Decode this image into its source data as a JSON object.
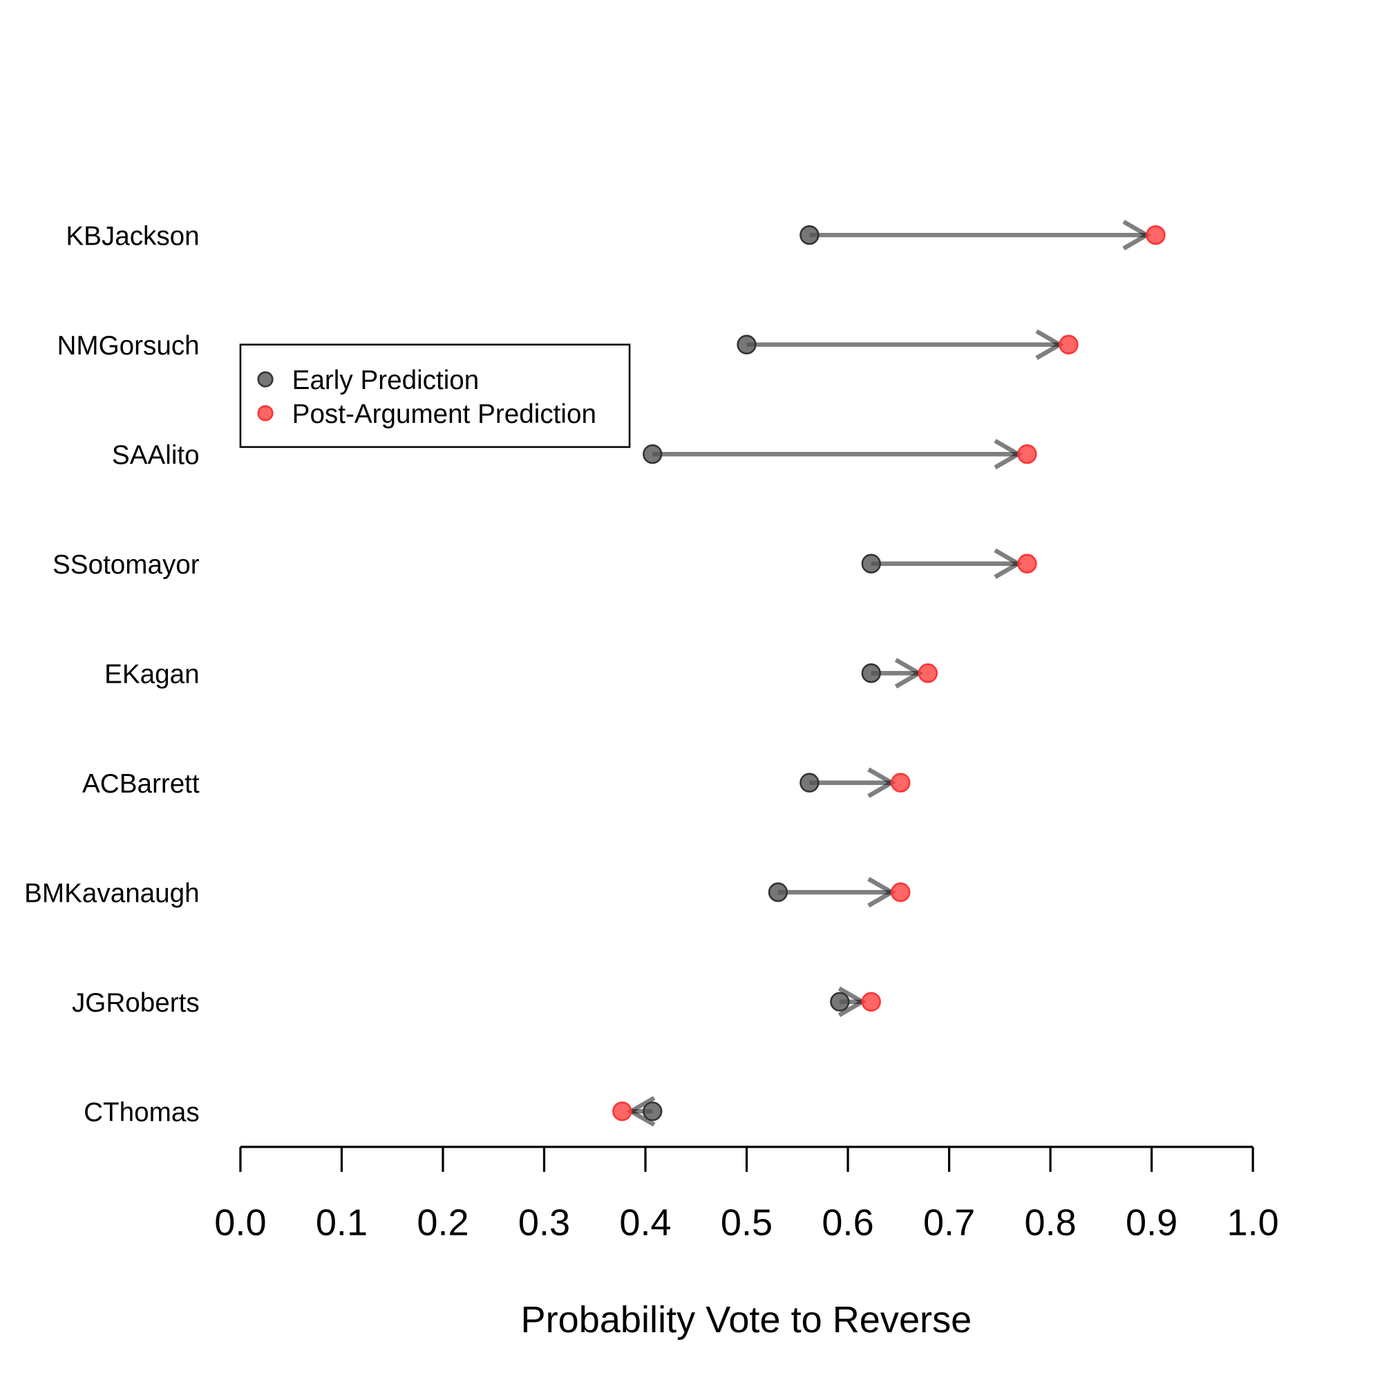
{
  "chart_data": {
    "type": "dot-arrow",
    "xlabel": "Probability Vote to Reverse",
    "ylabel": "",
    "title": "",
    "xlim": [
      0,
      1
    ],
    "xticks": [
      "0.0",
      "0.1",
      "0.2",
      "0.3",
      "0.4",
      "0.5",
      "0.6",
      "0.7",
      "0.8",
      "0.9",
      "1.0"
    ],
    "categories": [
      "KBJackson",
      "NMGorsuch",
      "SAAlito",
      "SSotomayor",
      "EKagan",
      "ACBarrett",
      "BMKavanaugh",
      "JGRoberts",
      "CThomas"
    ],
    "series": [
      {
        "name": "Early Prediction",
        "color": "#555555",
        "values": [
          0.562,
          0.5,
          0.407,
          0.623,
          0.623,
          0.562,
          0.531,
          0.592,
          0.407
        ]
      },
      {
        "name": "Post-Argument Prediction",
        "color": "#ff3333",
        "values": [
          0.904,
          0.818,
          0.777,
          0.777,
          0.679,
          0.652,
          0.652,
          0.623,
          0.377
        ]
      }
    ],
    "legend": {
      "position": "top-left",
      "entries": [
        "Early Prediction",
        "Post-Argument Prediction"
      ]
    },
    "grid": false
  }
}
